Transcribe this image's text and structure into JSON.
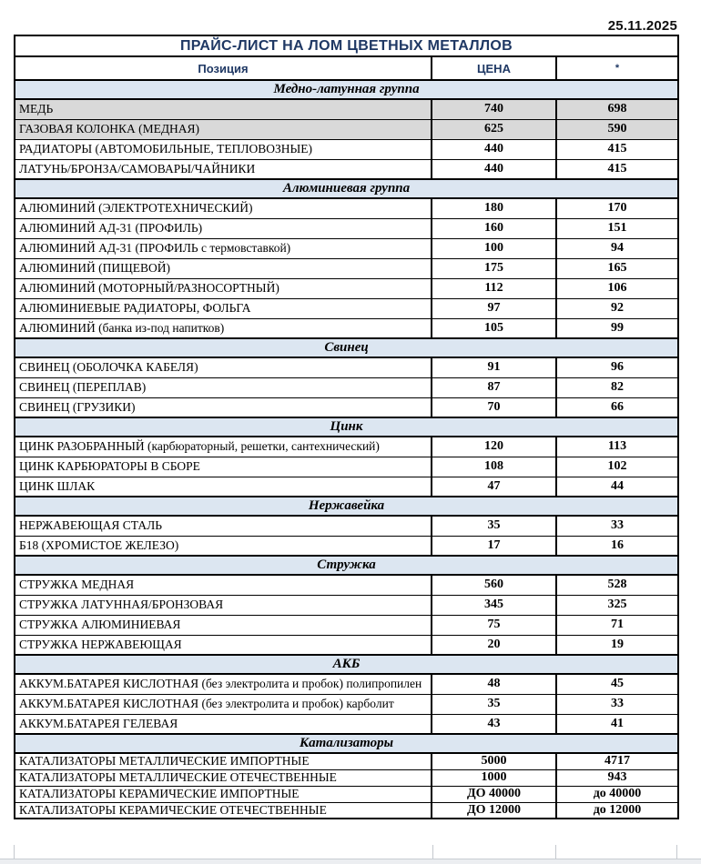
{
  "date": "25.11.2025",
  "colors": {
    "accent_navy": "#1f3864",
    "section_bg": "#dce6f1",
    "highlight_row_bg": "#d9d9d9",
    "border": "#000000"
  },
  "table": {
    "title": "ПРАЙС-ЛИСТ НА ЛОМ ЦВЕТНЫХ МЕТАЛЛОВ",
    "columns": [
      "Позиция",
      "ЦЕНА",
      "*"
    ],
    "sections": [
      {
        "name": "Медно-латунная группа",
        "rows": [
          {
            "position": "МЕДЬ",
            "price": "740",
            "alt": "698",
            "highlight": true
          },
          {
            "position": "ГАЗОВАЯ КОЛОНКА (МЕДНАЯ)",
            "price": "625",
            "alt": "590",
            "highlight": true
          },
          {
            "position": "РАДИАТОРЫ (АВТОМОБИЛЬНЫЕ, ТЕПЛОВОЗНЫЕ)",
            "price": "440",
            "alt": "415"
          },
          {
            "position": "ЛАТУНЬ/БРОНЗА/САМОВАРЫ/ЧАЙНИКИ",
            "price": "440",
            "alt": "415"
          }
        ]
      },
      {
        "name": "Алюминиевая группа",
        "rows": [
          {
            "position": "АЛЮМИНИЙ (ЭЛЕКТРОТЕХНИЧЕСКИЙ)",
            "price": "180",
            "alt": "170"
          },
          {
            "position": "АЛЮМИНИЙ АД-31 (ПРОФИЛЬ)",
            "price": "160",
            "alt": "151"
          },
          {
            "position": "АЛЮМИНИЙ АД-31 (ПРОФИЛЬ с термовставкой)",
            "price": "100",
            "alt": "94"
          },
          {
            "position": "АЛЮМИНИЙ (ПИЩЕВОЙ)",
            "price": "175",
            "alt": "165"
          },
          {
            "position": "АЛЮМИНИЙ (МОТОРНЫЙ/РАЗНОСОРТНЫЙ)",
            "price": "112",
            "alt": "106"
          },
          {
            "position": "АЛЮМИНИЕВЫЕ РАДИАТОРЫ, ФОЛЬГА",
            "price": "97",
            "alt": "92"
          },
          {
            "position": "АЛЮМИНИЙ (банка из-под напитков)",
            "price": "105",
            "alt": "99"
          }
        ]
      },
      {
        "name": "Свинец",
        "rows": [
          {
            "position": "СВИНЕЦ (ОБОЛОЧКА КАБЕЛЯ)",
            "price": "91",
            "alt": "96"
          },
          {
            "position": "СВИНЕЦ (ПЕРЕПЛАВ)",
            "price": "87",
            "alt": "82"
          },
          {
            "position": "СВИНЕЦ (ГРУЗИКИ)",
            "price": "70",
            "alt": "66"
          }
        ]
      },
      {
        "name": "Цинк",
        "rows": [
          {
            "position": "ЦИНК РАЗОБРАННЫЙ (карбюраторный, решетки, сантехнический)",
            "price": "120",
            "alt": "113"
          },
          {
            "position": "ЦИНК КАРБЮРАТОРЫ В СБОРЕ",
            "price": "108",
            "alt": "102"
          },
          {
            "position": "ЦИНК ШЛАК",
            "price": "47",
            "alt": "44"
          }
        ]
      },
      {
        "name": "Нержавейка",
        "rows": [
          {
            "position": "НЕРЖАВЕЮЩАЯ СТАЛЬ",
            "price": "35",
            "alt": "33"
          },
          {
            "position": "Б18 (ХРОМИСТОЕ ЖЕЛЕЗО)",
            "price": "17",
            "alt": "16"
          }
        ]
      },
      {
        "name": "Стружка",
        "rows": [
          {
            "position": "СТРУЖКА МЕДНАЯ",
            "price": "560",
            "alt": "528"
          },
          {
            "position": "СТРУЖКА ЛАТУННАЯ/БРОНЗОВАЯ",
            "price": "345",
            "alt": "325"
          },
          {
            "position": "СТРУЖКА АЛЮМИНИЕВАЯ",
            "price": "75",
            "alt": "71"
          },
          {
            "position": "СТРУЖКА НЕРЖАВЕЮЩАЯ",
            "price": "20",
            "alt": "19"
          }
        ]
      },
      {
        "name": "АКБ",
        "rows": [
          {
            "position": "АККУМ.БАТАРЕЯ КИСЛОТНАЯ (без электролита и пробок) полипропилен",
            "price": "48",
            "alt": "45"
          },
          {
            "position": "АККУМ.БАТАРЕЯ КИСЛОТНАЯ (без электролита и пробок) карболит",
            "price": "35",
            "alt": "33"
          },
          {
            "position": "АККУМ.БАТАРЕЯ ГЕЛЕВАЯ",
            "price": "43",
            "alt": "41"
          }
        ]
      },
      {
        "name": "Катализаторы",
        "compact": true,
        "rows": [
          {
            "position": "КАТАЛИЗАТОРЫ МЕТАЛЛИЧЕСКИЕ ИМПОРТНЫЕ",
            "price": "5000",
            "alt": "4717"
          },
          {
            "position": "КАТАЛИЗАТОРЫ МЕТАЛЛИЧЕСКИЕ ОТЕЧЕСТВЕННЫЕ",
            "price": "1000",
            "alt": "943"
          },
          {
            "position": "КАТАЛИЗАТОРЫ КЕРАМИЧЕСКИЕ ИМПОРТНЫЕ",
            "price": "ДО 40000",
            "alt": "до 40000"
          },
          {
            "position": "КАТАЛИЗАТОРЫ КЕРАМИЧЕСКИЕ ОТЕЧЕСТВЕННЫЕ",
            "price": "ДО 12000",
            "alt": "до 12000"
          }
        ]
      }
    ]
  }
}
